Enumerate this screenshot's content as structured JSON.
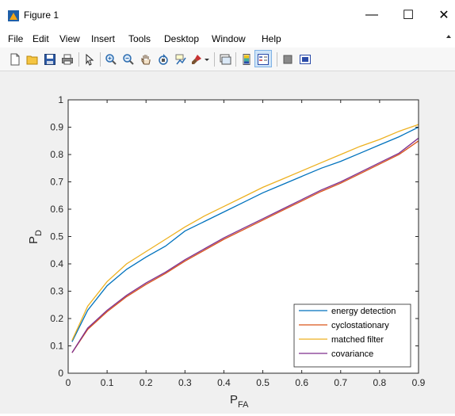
{
  "window": {
    "title": "Figure 1",
    "minimize_glyph": "—",
    "maximize_glyph": "☐",
    "close_glyph": "✕"
  },
  "menu": {
    "items": [
      {
        "label": "File"
      },
      {
        "label": "Edit"
      },
      {
        "label": "View"
      },
      {
        "label": "Insert"
      },
      {
        "label": "Tools"
      },
      {
        "label": "Desktop"
      },
      {
        "label": "Window"
      },
      {
        "label": "Help"
      }
    ]
  },
  "toolbar": {
    "icons": [
      "new-figure-icon",
      "open-file-icon",
      "save-icon",
      "print-icon",
      "pointer-icon",
      "zoom-in-icon",
      "zoom-out-icon",
      "pan-icon",
      "rotate-icon",
      "data-cursor-icon",
      "brush-icon",
      "brush-dropdown-icon",
      "link-plot-icon",
      "colorbar-icon",
      "legend-icon",
      "hide-plot-tools-icon",
      "show-plot-tools-icon"
    ]
  },
  "chart_data": {
    "type": "line",
    "title": "",
    "xlabel_main": "P",
    "xlabel_sub": "FA",
    "ylabel_main": "P",
    "ylabel_sub": "D",
    "xlim": [
      0,
      0.9
    ],
    "ylim": [
      0,
      1
    ],
    "xticks": [
      0,
      0.1,
      0.2,
      0.3,
      0.4,
      0.5,
      0.6,
      0.7,
      0.8,
      0.9
    ],
    "xtick_labels": [
      "0",
      "0.1",
      "0.2",
      "0.3",
      "0.4",
      "0.5",
      "0.6",
      "0.7",
      "0.8",
      "0.9"
    ],
    "yticks": [
      0,
      0.1,
      0.2,
      0.3,
      0.4,
      0.5,
      0.6,
      0.7,
      0.8,
      0.9,
      1
    ],
    "ytick_labels": [
      "0",
      "0.1",
      "0.2",
      "0.3",
      "0.4",
      "0.5",
      "0.6",
      "0.7",
      "0.8",
      "0.9",
      "1"
    ],
    "grid": false,
    "legend_position": "bottom-right",
    "x": [
      0.01,
      0.05,
      0.1,
      0.15,
      0.2,
      0.25,
      0.3,
      0.35,
      0.4,
      0.45,
      0.5,
      0.55,
      0.6,
      0.65,
      0.7,
      0.75,
      0.8,
      0.85,
      0.9
    ],
    "series": [
      {
        "name": "energy detection",
        "color": "#0072bd",
        "values": [
          0.115,
          0.23,
          0.32,
          0.38,
          0.425,
          0.465,
          0.52,
          0.555,
          0.59,
          0.625,
          0.66,
          0.69,
          0.72,
          0.75,
          0.775,
          0.805,
          0.835,
          0.865,
          0.9
        ]
      },
      {
        "name": "cyclostationary",
        "color": "#d95319",
        "values": [
          0.075,
          0.16,
          0.225,
          0.28,
          0.325,
          0.365,
          0.41,
          0.45,
          0.49,
          0.525,
          0.56,
          0.595,
          0.63,
          0.665,
          0.695,
          0.73,
          0.765,
          0.8,
          0.85
        ]
      },
      {
        "name": "matched filter",
        "color": "#edb120",
        "values": [
          0.12,
          0.245,
          0.335,
          0.4,
          0.445,
          0.49,
          0.535,
          0.575,
          0.61,
          0.645,
          0.68,
          0.71,
          0.74,
          0.77,
          0.8,
          0.83,
          0.855,
          0.885,
          0.91
        ]
      },
      {
        "name": "covariance",
        "color": "#7e2f8e",
        "values": [
          0.075,
          0.165,
          0.23,
          0.285,
          0.33,
          0.37,
          0.415,
          0.455,
          0.495,
          0.53,
          0.565,
          0.6,
          0.635,
          0.67,
          0.7,
          0.735,
          0.77,
          0.805,
          0.86
        ]
      }
    ]
  }
}
